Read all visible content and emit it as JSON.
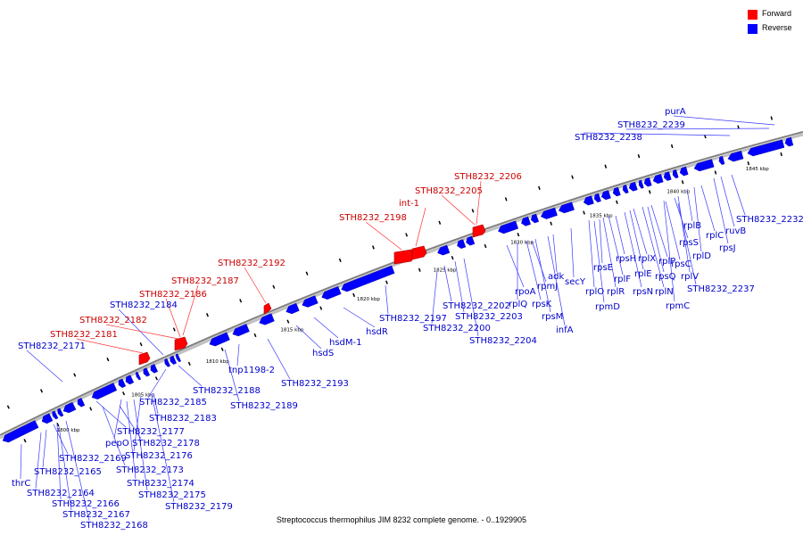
{
  "legend": {
    "forward_label": "Forward",
    "reverse_label": "Reverse",
    "forward_color": "#ff0000",
    "reverse_color": "#0000ff"
  },
  "caption": "Streptococcus thermophilus JIM 8232 complete genome. - 0..1929905",
  "scale_ticks": [
    "1800 kbp",
    "1805 kbp",
    "1810 kbp",
    "1815 kbp",
    "1820 kbp",
    "1825 kbp",
    "1830 kbp",
    "1835 kbp",
    "1840 kbp",
    "1845 kbp"
  ],
  "forward_genes": [
    "STH8232_2181",
    "STH8232_2182",
    "STH8232_2186",
    "STH8232_2187",
    "STH8232_2192",
    "STH8232_2198",
    "int-1",
    "STH8232_2205",
    "STH8232_2206"
  ],
  "reverse_genes": [
    "thrC",
    "STH8232_2164",
    "STH8232_2165",
    "STH8232_2166",
    "STH8232_2167",
    "STH8232_2168",
    "STH8232_2169",
    "STH8232_2171",
    "pepO",
    "STH8232_2173",
    "STH8232_2174",
    "STH8232_2175",
    "STH8232_2176",
    "STH8232_2177",
    "STH8232_2178",
    "STH8232_2179",
    "STH8232_2183",
    "STH8232_2184",
    "STH8232_2185",
    "STH8232_2188",
    "STH8232_2189",
    "tnp1198-2",
    "STH8232_2193",
    "hsdS",
    "hsdM-1",
    "hsdR",
    "STH8232_2197",
    "STH8232_2200",
    "STH8232_2202",
    "STH8232_2203",
    "STH8232_2204",
    "rpoA",
    "rplQ",
    "rpmJ",
    "rpsK",
    "rpsM",
    "adk",
    "infA",
    "secY",
    "rplO",
    "rpmD",
    "rpsE",
    "rplR",
    "rplF",
    "rpsH",
    "rpsN",
    "rplE",
    "rplX",
    "rplN",
    "rpsQ",
    "rplP",
    "rpmC",
    "rpsC",
    "rpsS",
    "rplV",
    "rplB",
    "rplD",
    "rplC",
    "rpsJ",
    "ruvB",
    "STH8232_2232",
    "STH8232_2237",
    "STH8232_2238",
    "STH8232_2239",
    "purA"
  ],
  "colors": {
    "backbone": "#808080",
    "label_reverse": "#0000cc",
    "label_forward": "#cc0000"
  }
}
